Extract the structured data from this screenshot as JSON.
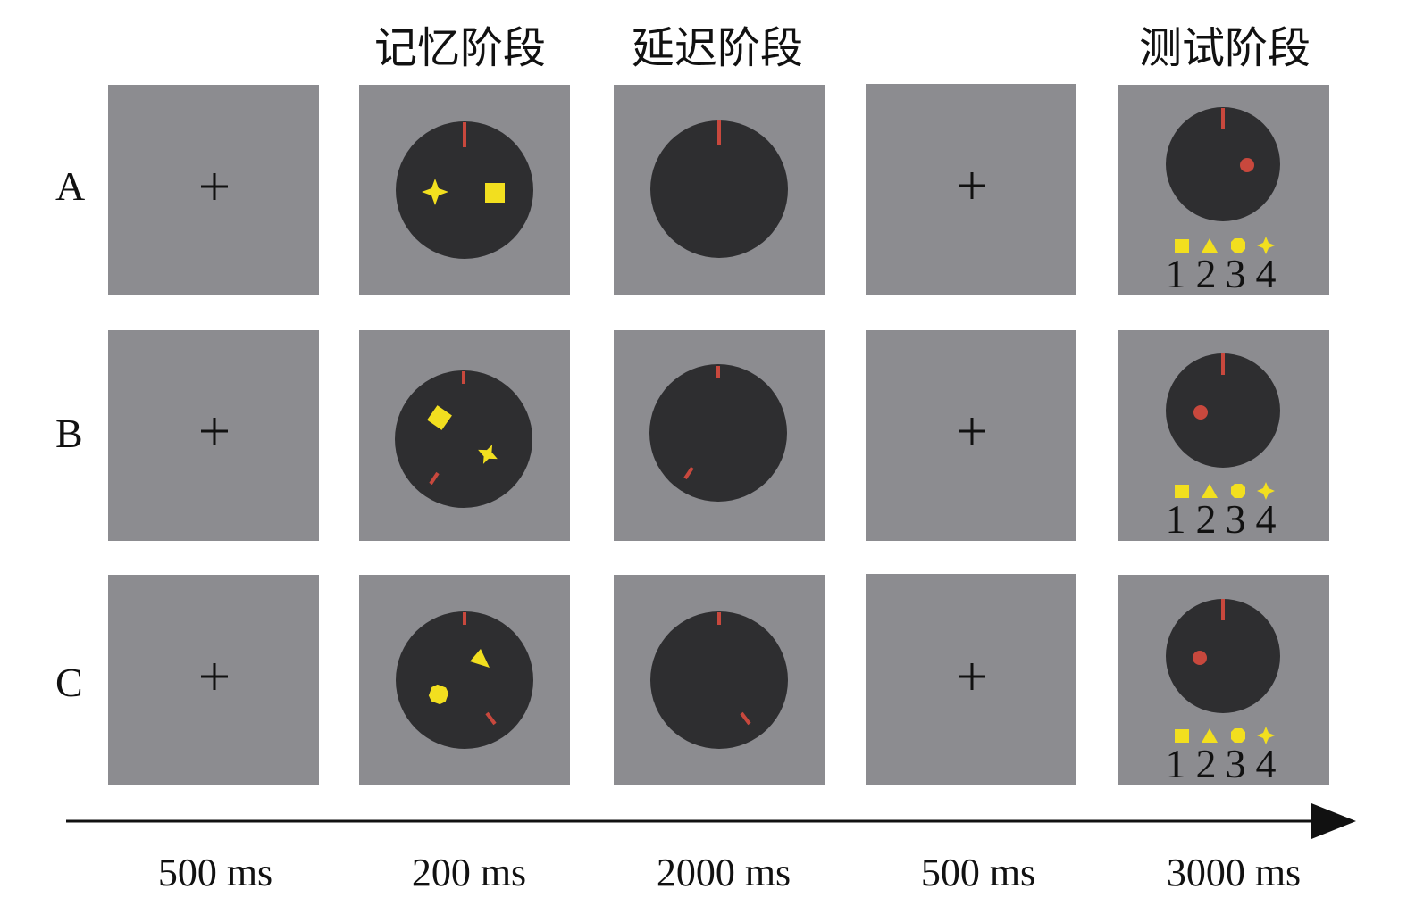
{
  "phases": {
    "memory": "记忆阶段",
    "delay": "延迟阶段",
    "test": "测试阶段"
  },
  "rows": [
    {
      "label": "A"
    },
    {
      "label": "B"
    },
    {
      "label": "C"
    }
  ],
  "durations": [
    "500 ms",
    "200 ms",
    "2000 ms",
    "500 ms",
    "3000 ms"
  ],
  "response_numbers": [
    "1",
    "2",
    "3",
    "4"
  ],
  "colors": {
    "screen_gray": "#8c8c90",
    "wheel_dark": "#2e2e30",
    "marker_red": "#c8483d",
    "stimulus_yellow": "#f2df1f",
    "fixation": "#111111"
  }
}
